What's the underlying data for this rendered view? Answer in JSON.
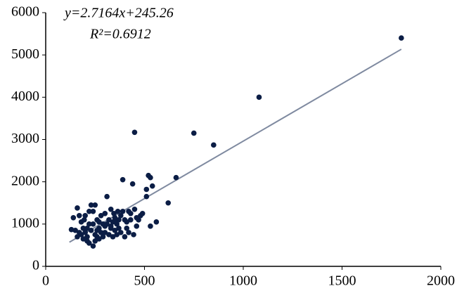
{
  "chart_data": {
    "type": "scatter",
    "equation": "y=2.7164x+245.26",
    "r_squared": "R²=0.6912",
    "trendline": {
      "slope": 2.7164,
      "intercept": 245.26,
      "x": [
        120,
        1800
      ],
      "color": "#7f8aa0"
    },
    "color": "#0b1d45",
    "x": [
      1800,
      1080,
      750,
      450,
      850,
      660,
      520,
      530,
      540,
      510,
      510,
      620,
      560,
      530,
      130,
      160,
      170,
      180,
      190,
      200,
      210,
      220,
      230,
      240,
      250,
      260,
      270,
      280,
      290,
      300,
      310,
      320,
      330,
      340,
      350,
      360,
      370,
      380,
      390,
      400,
      410,
      420,
      430,
      440,
      450,
      460,
      470,
      480,
      490,
      200,
      210,
      220,
      240,
      250,
      260,
      270,
      290,
      300,
      320,
      340,
      360,
      380,
      400,
      180,
      190,
      170,
      160,
      230,
      250,
      270,
      280,
      300,
      330,
      350,
      370,
      390,
      410,
      420,
      150,
      140,
      200,
      220,
      310,
      330,
      345,
      355,
      365,
      430,
      445,
      460,
      260,
      240,
      210,
      195
    ],
    "y": [
      5400,
      4000,
      3150,
      3170,
      2870,
      2100,
      2150,
      2100,
      1900,
      1820,
      1650,
      1500,
      1050,
      950,
      870,
      1380,
      1200,
      1050,
      900,
      800,
      700,
      1000,
      1450,
      1300,
      1450,
      1100,
      900,
      800,
      1000,
      1250,
      1650,
      1100,
      950,
      1050,
      1150,
      1000,
      900,
      1200,
      2050,
      1100,
      900,
      1300,
      1250,
      1950,
      1350,
      950,
      1100,
      1200,
      1250,
      650,
      600,
      550,
      480,
      600,
      700,
      650,
      700,
      800,
      750,
      700,
      750,
      800,
      700,
      750,
      650,
      800,
      700,
      850,
      750,
      1050,
      1200,
      950,
      1350,
      850,
      1100,
      1300,
      1050,
      800,
      850,
      1150,
      1200,
      1300,
      1000,
      900,
      1250,
      1050,
      1300,
      1100,
      750,
      1150,
      850,
      1000,
      900,
      1100
    ],
    "xlim": [
      0,
      2000
    ],
    "ylim": [
      0,
      6000
    ],
    "xticks": [
      0,
      500,
      1000,
      1500,
      2000
    ],
    "yticks": [
      0,
      1000,
      2000,
      3000,
      4000,
      5000,
      6000
    ]
  }
}
